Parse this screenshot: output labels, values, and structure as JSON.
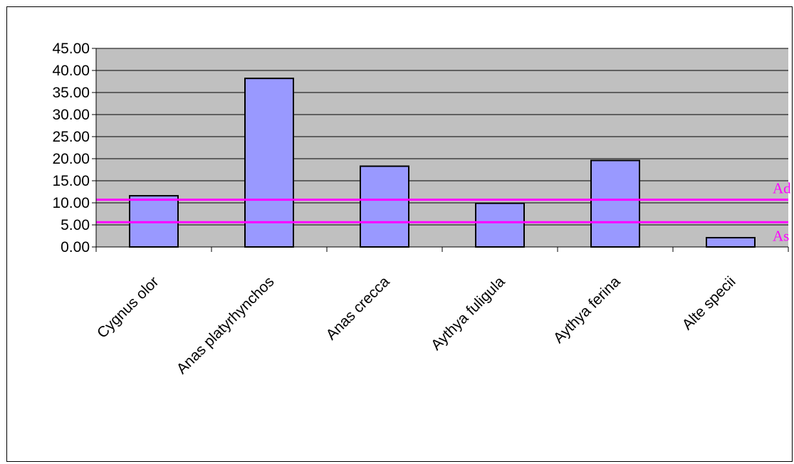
{
  "chart_data": {
    "type": "bar",
    "categories": [
      "Cygnus olor",
      "Anas platyrhynchos",
      "Anas crecca",
      "Aythya fuligula",
      "Aythya ferina",
      "Alte specii"
    ],
    "values": [
      11.6,
      38.2,
      18.3,
      9.9,
      19.6,
      2.1
    ],
    "ylim": [
      0,
      45
    ],
    "ytick_step": 5,
    "yticks": [
      "0.00",
      "5.00",
      "10.00",
      "15.00",
      "20.00",
      "25.00",
      "30.00",
      "35.00",
      "40.00",
      "45.00"
    ],
    "grid": true,
    "plot_background": "#c0c0c0",
    "bar_color": "#9999ff",
    "reference_lines": [
      {
        "value": 10.7,
        "label": "Ad",
        "color": "#ff00ff"
      },
      {
        "value": 5.6,
        "label": "As",
        "color": "#ff00ff"
      }
    ],
    "title": "",
    "xlabel": "",
    "ylabel": ""
  }
}
